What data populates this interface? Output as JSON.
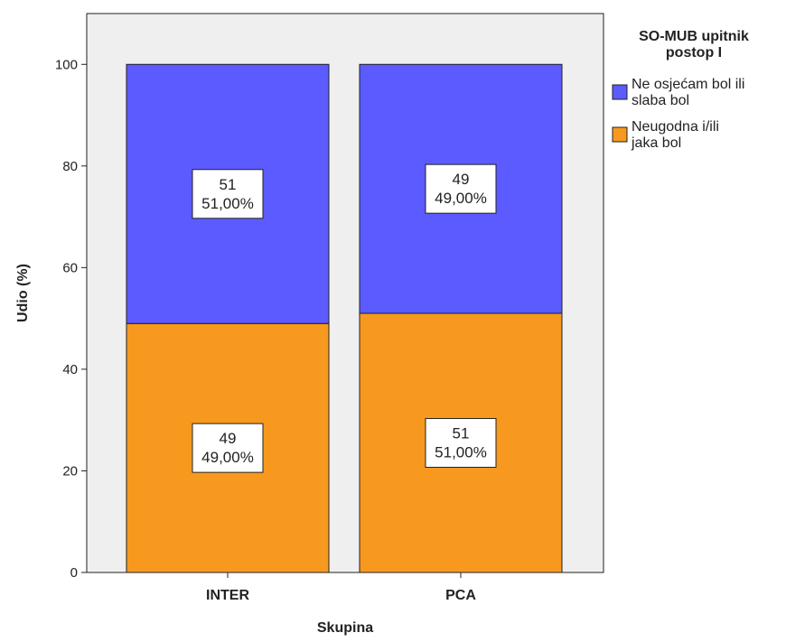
{
  "chart_data": {
    "type": "bar",
    "stacked": true,
    "categories": [
      "INTER",
      "PCA"
    ],
    "series": [
      {
        "name": "Neugodna i/ili jaka bol",
        "color": "#f7991f",
        "values": [
          49,
          51
        ],
        "counts": [
          "49",
          "51"
        ],
        "percent_labels": [
          "49,00%",
          "51,00%"
        ]
      },
      {
        "name": "Ne osjećam bol ili slaba bol",
        "color": "#5b5bff",
        "values": [
          51,
          49
        ],
        "counts": [
          "51",
          "49"
        ],
        "percent_labels": [
          "51,00%",
          "49,00%"
        ]
      }
    ],
    "xlabel": "Skupina",
    "ylabel": "Udio (%)",
    "ylim": [
      0,
      110
    ],
    "yticks": [
      "0",
      "20",
      "40",
      "60",
      "80",
      "100"
    ],
    "grid": false,
    "plot_background": "#efefef",
    "legend": {
      "title_lines": [
        "SO-MUB upitnik",
        "postop I"
      ],
      "placement": "right",
      "entries": [
        {
          "color": "#5b5bff",
          "lines": [
            "Ne osjećam bol ili",
            "slaba bol"
          ]
        },
        {
          "color": "#f7991f",
          "lines": [
            "Neugodna i/ili",
            "jaka bol"
          ]
        }
      ]
    }
  }
}
